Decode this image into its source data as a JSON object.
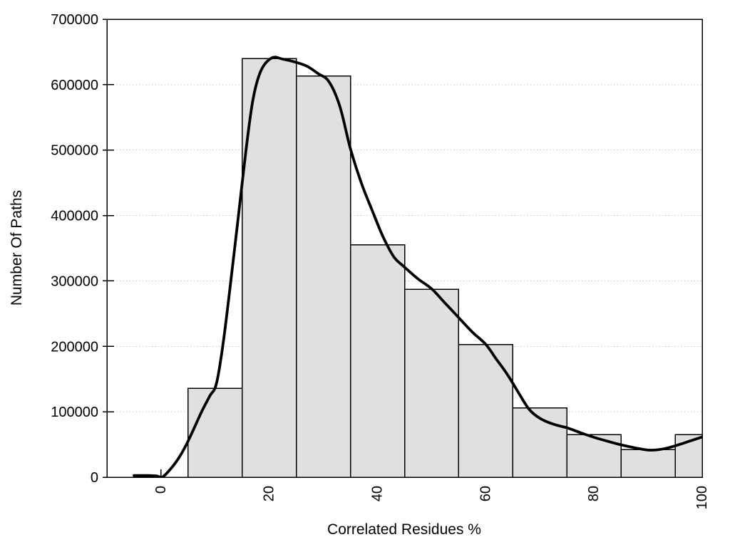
{
  "figure": {
    "background": "#ffffff",
    "title": ""
  },
  "chart_data": {
    "type": "bar",
    "subtype": "histogram-with-smooth-line",
    "title": "",
    "xlabel": "Correlated Residues %",
    "ylabel": "Number Of Paths",
    "xlim": [
      -10,
      100
    ],
    "ylim": [
      0,
      700000
    ],
    "xticks": [
      0,
      20,
      40,
      60,
      80,
      100
    ],
    "yticks": [
      0,
      100000,
      200000,
      300000,
      400000,
      500000,
      600000,
      700000
    ],
    "xtick_labels": [
      "0",
      "20",
      "40",
      "60",
      "80",
      "100"
    ],
    "ytick_labels": [
      "0",
      "100000",
      "200000",
      "300000",
      "400000",
      "500000",
      "600000",
      "700000"
    ],
    "xtick_label_rotation_deg": -90,
    "grid": "horizontal-dotted",
    "legend": "none",
    "colors": {
      "bar_fill": "#e0e0e0",
      "bar_edge": "#000000",
      "line": "#000000",
      "grid": "#c8c8c8",
      "border": "#000000",
      "text": "#000000"
    },
    "bins": [
      {
        "from": 5,
        "to": 15,
        "count": 136000
      },
      {
        "from": 15,
        "to": 25,
        "count": 640000
      },
      {
        "from": 25,
        "to": 35,
        "count": 613000
      },
      {
        "from": 35,
        "to": 45,
        "count": 355000
      },
      {
        "from": 45,
        "to": 55,
        "count": 287000
      },
      {
        "from": 55,
        "to": 65,
        "count": 203000
      },
      {
        "from": 65,
        "to": 75,
        "count": 106000
      },
      {
        "from": 75,
        "to": 85,
        "count": 65000
      },
      {
        "from": 85,
        "to": 95,
        "count": 42000
      },
      {
        "from": 95,
        "to": 100,
        "count": 65000
      }
    ],
    "line_series": {
      "name": "smoothed-path-distribution",
      "points": [
        [
          -5,
          2500
        ],
        [
          -2.5,
          2500
        ],
        [
          -0.8,
          1800
        ],
        [
          0.2,
          0
        ],
        [
          1.5,
          10000
        ],
        [
          3,
          26000
        ],
        [
          4.5,
          47000
        ],
        [
          6,
          73000
        ],
        [
          7.5,
          100000
        ],
        [
          9,
          124000
        ],
        [
          10.2,
          142000
        ],
        [
          11.4,
          200000
        ],
        [
          12.9,
          300000
        ],
        [
          14.3,
          400000
        ],
        [
          15.7,
          500000
        ],
        [
          17,
          578000
        ],
        [
          18.5,
          622000
        ],
        [
          20.5,
          641000
        ],
        [
          22.5,
          639000
        ],
        [
          25,
          634000
        ],
        [
          27,
          628000
        ],
        [
          29,
          617000
        ],
        [
          31,
          605000
        ],
        [
          33,
          568000
        ],
        [
          35,
          502000
        ],
        [
          37,
          450000
        ],
        [
          39,
          408000
        ],
        [
          41,
          368000
        ],
        [
          43,
          337000
        ],
        [
          45,
          321000
        ],
        [
          47.5,
          303000
        ],
        [
          50,
          288000
        ],
        [
          52.5,
          266000
        ],
        [
          55,
          244000
        ],
        [
          57.5,
          222000
        ],
        [
          60,
          203000
        ],
        [
          62,
          180000
        ],
        [
          64,
          157000
        ],
        [
          66,
          130000
        ],
        [
          68,
          104000
        ],
        [
          70,
          90000
        ],
        [
          72.5,
          81000
        ],
        [
          75,
          75500
        ],
        [
          77.5,
          68000
        ],
        [
          80,
          61000
        ],
        [
          82.5,
          55000
        ],
        [
          85,
          49500
        ],
        [
          87.5,
          45000
        ],
        [
          90,
          41500
        ],
        [
          92,
          42200
        ],
        [
          94,
          45500
        ],
        [
          96,
          50500
        ],
        [
          98,
          56000
        ],
        [
          100,
          61500
        ]
      ]
    }
  }
}
